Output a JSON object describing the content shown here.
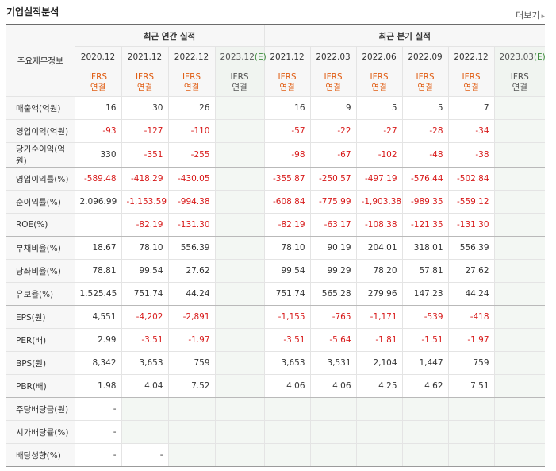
{
  "header": {
    "title": "기업실적분석",
    "more_label": "더보기"
  },
  "table": {
    "label_header": "주요재무정보",
    "group_annual": "최근 연간 실적",
    "group_quarter": "최근 분기 실적",
    "annual_dates": [
      "2020.12",
      "2021.12",
      "2022.12",
      "2023.12(E)"
    ],
    "quarter_dates": [
      "2021.12",
      "2022.03",
      "2022.06",
      "2022.09",
      "2022.12",
      "2023.03(E)"
    ],
    "acc_line1": "IFRS",
    "acc_line2": "연결",
    "rows": [
      {
        "label": "매출액(억원)",
        "cells": [
          "16",
          "30",
          "26",
          "",
          "16",
          "9",
          "5",
          "5",
          "7",
          ""
        ]
      },
      {
        "label": "영업이익(억원)",
        "cells": [
          "-93",
          "-127",
          "-110",
          "",
          "-57",
          "-22",
          "-27",
          "-28",
          "-34",
          ""
        ]
      },
      {
        "label": "당기순이익(억원)",
        "cells": [
          "330",
          "-351",
          "-255",
          "",
          "-98",
          "-67",
          "-102",
          "-48",
          "-38",
          ""
        ]
      },
      {
        "label": "영업이익률(%)",
        "cells": [
          "-589.48",
          "-418.29",
          "-430.05",
          "",
          "-355.87",
          "-250.57",
          "-497.19",
          "-576.44",
          "-502.84",
          ""
        ]
      },
      {
        "label": "순이익률(%)",
        "cells": [
          "2,096.99",
          "-1,153.59",
          "-994.38",
          "",
          "-608.84",
          "-775.99",
          "-1,903.38",
          "-989.35",
          "-559.12",
          ""
        ]
      },
      {
        "label": "ROE(%)",
        "cells": [
          "",
          "-82.19",
          "-131.30",
          "",
          "-82.19",
          "-63.17",
          "-108.38",
          "-121.35",
          "-131.30",
          ""
        ]
      },
      {
        "label": "부채비율(%)",
        "cells": [
          "18.67",
          "78.10",
          "556.39",
          "",
          "78.10",
          "90.19",
          "204.01",
          "318.01",
          "556.39",
          ""
        ]
      },
      {
        "label": "당좌비율(%)",
        "cells": [
          "78.81",
          "99.54",
          "27.62",
          "",
          "99.54",
          "99.29",
          "78.20",
          "57.81",
          "27.62",
          ""
        ]
      },
      {
        "label": "유보율(%)",
        "cells": [
          "1,525.45",
          "751.74",
          "44.24",
          "",
          "751.74",
          "565.28",
          "279.96",
          "147.23",
          "44.24",
          ""
        ]
      },
      {
        "label": "EPS(원)",
        "cells": [
          "4,551",
          "-4,202",
          "-2,891",
          "",
          "-1,155",
          "-765",
          "-1,171",
          "-539",
          "-418",
          ""
        ]
      },
      {
        "label": "PER(배)",
        "cells": [
          "2.99",
          "-3.51",
          "-1.97",
          "",
          "-3.51",
          "-5.64",
          "-1.81",
          "-1.51",
          "-1.97",
          ""
        ]
      },
      {
        "label": "BPS(원)",
        "cells": [
          "8,342",
          "3,653",
          "759",
          "",
          "3,653",
          "3,531",
          "2,104",
          "1,447",
          "759",
          ""
        ]
      },
      {
        "label": "PBR(배)",
        "cells": [
          "1.98",
          "4.04",
          "7.52",
          "",
          "4.06",
          "4.06",
          "4.25",
          "4.62",
          "7.51",
          ""
        ]
      },
      {
        "label": "주당배당금(원)",
        "cells": [
          "-",
          "",
          "",
          "",
          "",
          "",
          "",
          "",
          "",
          ""
        ]
      },
      {
        "label": "시가배당률(%)",
        "cells": [
          "-",
          "",
          "",
          "",
          "",
          "",
          "",
          "",
          "",
          ""
        ]
      },
      {
        "label": "배당성향(%)",
        "cells": [
          "-",
          "-",
          "",
          "",
          "",
          "",
          "",
          "",
          "",
          ""
        ]
      }
    ]
  }
}
